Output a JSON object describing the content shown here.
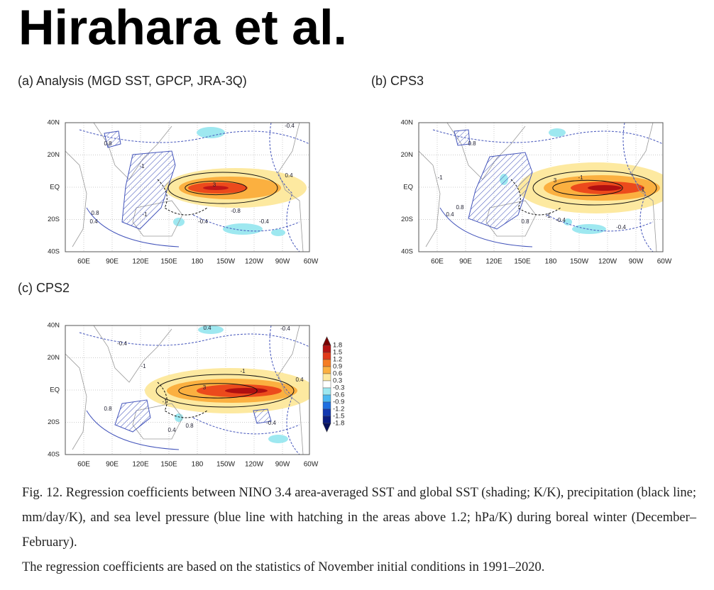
{
  "header": {
    "title": "Hirahara et al."
  },
  "panels": [
    {
      "label": "(a)  Analysis (MGD SST, GPCP, JRA-3Q)",
      "annotations": [
        "0.8",
        "-1",
        "3",
        "-1",
        "0.8",
        "0.4",
        "-0.8",
        "-0.4",
        "-0.4",
        "0.4",
        "-0.4"
      ]
    },
    {
      "label": "(b)  CPS3",
      "annotations": [
        "0.8",
        "-1",
        "3",
        "-1",
        "0.8",
        "0.4",
        "0.8",
        "-0.4",
        "-1",
        "-0.4",
        "1"
      ]
    },
    {
      "label": "(c)  CPS2",
      "annotations": [
        "-0.4",
        "0.4",
        "-1",
        "3",
        "-1",
        "-1",
        "0.8",
        "-0.4",
        "0.8",
        "0.4",
        "-0.4",
        "0.4"
      ]
    }
  ],
  "map_axes": {
    "lat_labels": [
      "40N",
      "20N",
      "EQ",
      "20S",
      "40S"
    ],
    "lon_labels": [
      "60E",
      "90E",
      "120E",
      "150E",
      "180",
      "150W",
      "120W",
      "90W",
      "60W"
    ]
  },
  "colorbar": {
    "labels": [
      "1.8",
      "1.5",
      "1.2",
      "0.9",
      "0.6",
      "0.3",
      "-0.3",
      "-0.6",
      "-0.9",
      "-1.2",
      "-1.5",
      "-1.8"
    ]
  },
  "caption": {
    "paragraphs": [
      "Fig. 12. Regression coefficients between NINO 3.4 area-averaged SST and global SST (shading; K/K), precipitation (black line; mm/day/K), and sea level pressure (blue line with hatching in the areas above 1.2; hPa/K) during boreal winter (December–February).",
      "The regression coefficients are based on the statistics of November initial conditions in 1991–2020."
    ]
  }
}
